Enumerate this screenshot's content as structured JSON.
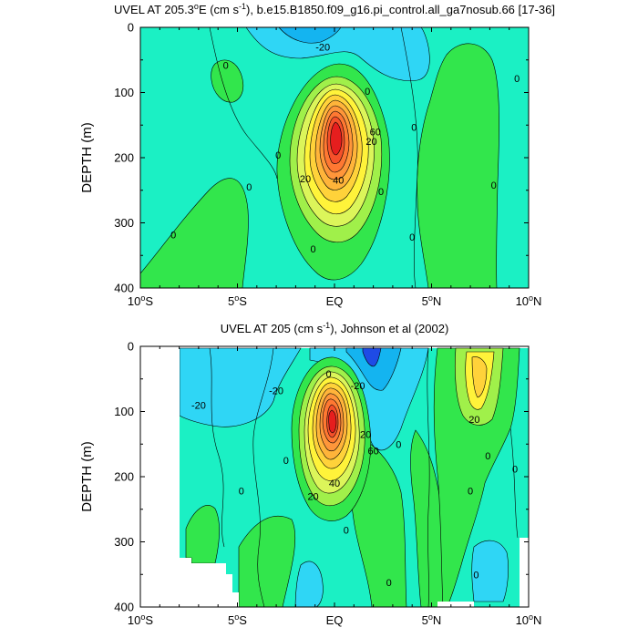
{
  "chart_data": [
    {
      "type": "contour",
      "title_main": "UVEL AT 205.3",
      "title_deg": "o",
      "title_unit_pre": "E (cm s",
      "title_unit_sup": "-1",
      "title_rest": "), b.e15.B1850.f09_g16.pi_control.all_ga7nosub.66 [17-36]",
      "ylabel": "DEPTH (m)",
      "xlim": [
        -10,
        10
      ],
      "ylim": [
        0,
        400
      ],
      "yticks": [
        "0",
        "100",
        "200",
        "300",
        "400"
      ],
      "xticks": [
        {
          "value": -10,
          "num": "10",
          "deg": "o",
          "hemi": "S"
        },
        {
          "value": -5,
          "num": "5",
          "deg": "o",
          "hemi": "S"
        },
        {
          "value": 0,
          "num": "EQ",
          "deg": "",
          "hemi": ""
        },
        {
          "value": 5,
          "num": "5",
          "deg": "o",
          "hemi": "N"
        },
        {
          "value": 10,
          "num": "10",
          "deg": "o",
          "hemi": "N"
        }
      ],
      "contour_labels": [
        {
          "text": "-20",
          "lat": -0.6,
          "depth": 30
        },
        {
          "text": "0",
          "lat": -5.6,
          "depth": 58
        },
        {
          "text": "0",
          "lat": 1.7,
          "depth": 98
        },
        {
          "text": "60",
          "lat": 2.1,
          "depth": 160
        },
        {
          "text": "20",
          "lat": 1.9,
          "depth": 175
        },
        {
          "text": "0",
          "lat": 4.1,
          "depth": 153
        },
        {
          "text": "0",
          "lat": -2.9,
          "depth": 196
        },
        {
          "text": "20",
          "lat": -1.5,
          "depth": 232
        },
        {
          "text": "40",
          "lat": 0.2,
          "depth": 234
        },
        {
          "text": "0",
          "lat": 2.4,
          "depth": 252
        },
        {
          "text": "0",
          "lat": -4.4,
          "depth": 245
        },
        {
          "text": "0",
          "lat": 8.2,
          "depth": 242
        },
        {
          "text": "0",
          "lat": 9.4,
          "depth": 78
        },
        {
          "text": "0",
          "lat": -8.3,
          "depth": 318
        },
        {
          "text": "0",
          "lat": -1.1,
          "depth": 340
        },
        {
          "text": "0",
          "lat": 4.0,
          "depth": 322
        }
      ]
    },
    {
      "type": "contour",
      "title_main": "UVEL AT 205 (cm s",
      "title_unit_sup": "-1",
      "title_rest": "), Johnson et al (2002)",
      "ylabel": "DEPTH (m)",
      "xlim": [
        -10,
        10
      ],
      "ylim": [
        0,
        400
      ],
      "yticks": [
        "0",
        "100",
        "200",
        "300",
        "400"
      ],
      "xticks": [
        {
          "value": -10,
          "num": "10",
          "deg": "o",
          "hemi": "S"
        },
        {
          "value": -5,
          "num": "5",
          "deg": "o",
          "hemi": "S"
        },
        {
          "value": 0,
          "num": "EQ",
          "deg": "",
          "hemi": ""
        },
        {
          "value": 5,
          "num": "5",
          "deg": "o",
          "hemi": "N"
        },
        {
          "value": 10,
          "num": "10",
          "deg": "o",
          "hemi": "N"
        }
      ],
      "contour_labels": [
        {
          "text": "-20",
          "lat": -7.0,
          "depth": 90
        },
        {
          "text": "-20",
          "lat": -3.0,
          "depth": 68
        },
        {
          "text": "-20",
          "lat": 1.2,
          "depth": 60
        },
        {
          "text": "0",
          "lat": -0.3,
          "depth": 42
        },
        {
          "text": "20",
          "lat": 1.6,
          "depth": 135
        },
        {
          "text": "60",
          "lat": 2.0,
          "depth": 160
        },
        {
          "text": "20",
          "lat": 7.2,
          "depth": 112
        },
        {
          "text": "0",
          "lat": 3.3,
          "depth": 150
        },
        {
          "text": "0",
          "lat": -2.5,
          "depth": 175
        },
        {
          "text": "40",
          "lat": 0.0,
          "depth": 210
        },
        {
          "text": "20",
          "lat": -1.1,
          "depth": 230
        },
        {
          "text": "0",
          "lat": -4.8,
          "depth": 222
        },
        {
          "text": "0",
          "lat": 7.9,
          "depth": 168
        },
        {
          "text": "0",
          "lat": 9.3,
          "depth": 188
        },
        {
          "text": "0",
          "lat": 7.0,
          "depth": 222
        },
        {
          "text": "0",
          "lat": 0.6,
          "depth": 282
        },
        {
          "text": "0",
          "lat": 2.8,
          "depth": 362
        },
        {
          "text": "0",
          "lat": 7.3,
          "depth": 350
        }
      ]
    }
  ]
}
